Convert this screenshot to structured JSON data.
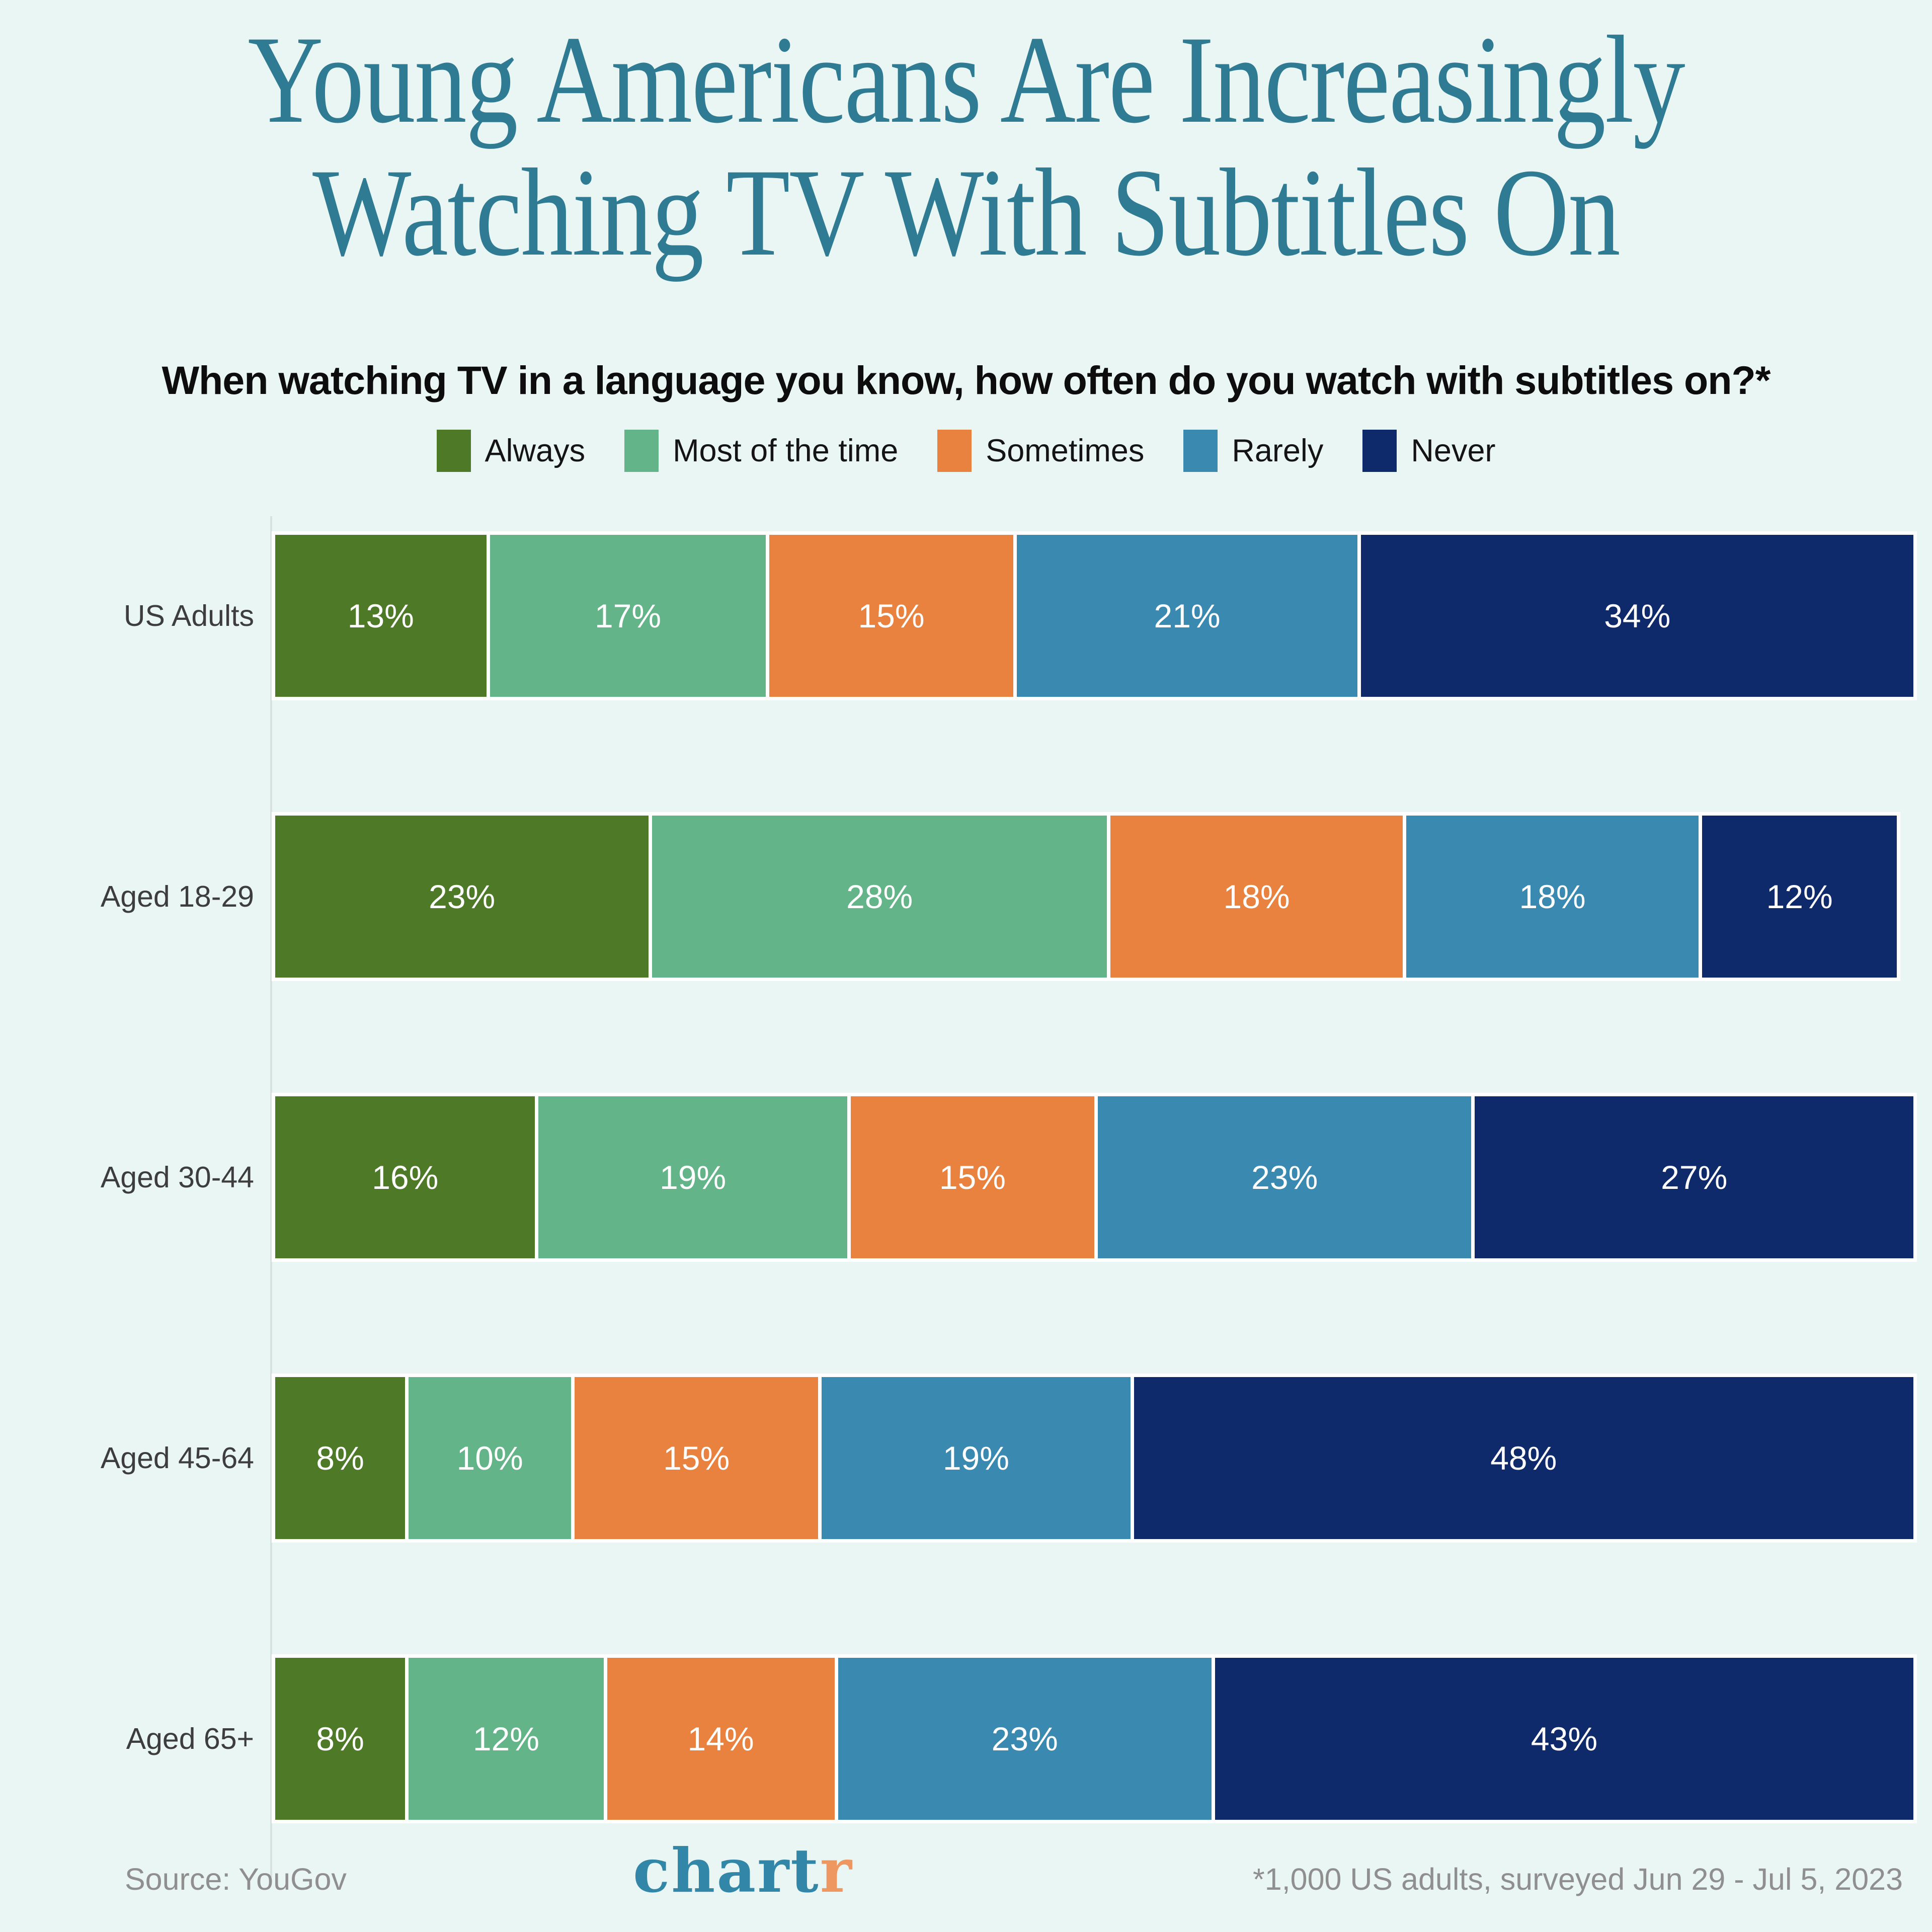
{
  "page": {
    "background": "#eaf6f3"
  },
  "header": {
    "title_lines": [
      "Young Americans Are Increasingly",
      "Watching TV With Subtitles On"
    ],
    "title_color": "#2f7b93",
    "subtitle": "When watching TV in a language you know, how often do you watch with subtitles on?*"
  },
  "legend": [
    {
      "label": "Always",
      "color": "#4e7a28"
    },
    {
      "label": "Most of the time",
      "color": "#63b488"
    },
    {
      "label": "Sometimes",
      "color": "#e8823e"
    },
    {
      "label": "Rarely",
      "color": "#3a89b1"
    },
    {
      "label": "Never",
      "color": "#0f2a6b"
    }
  ],
  "chart_data": {
    "type": "bar",
    "orientation": "horizontal",
    "stacked": true,
    "title": "Young Americans Are Increasingly Watching TV With Subtitles On",
    "subtitle": "When watching TV in a language you know, how often do you watch with subtitles on?*",
    "categories": [
      "US Adults",
      "Aged 18-29",
      "Aged 30-44",
      "Aged 45-64",
      "Aged 65+"
    ],
    "series": [
      {
        "name": "Always",
        "color": "#4e7a28",
        "values": [
          13,
          23,
          16,
          8,
          8
        ]
      },
      {
        "name": "Most of the time",
        "color": "#63b488",
        "values": [
          17,
          28,
          19,
          10,
          12
        ]
      },
      {
        "name": "Sometimes",
        "color": "#e8823e",
        "values": [
          15,
          18,
          15,
          15,
          14
        ]
      },
      {
        "name": "Rarely",
        "color": "#3a89b1",
        "values": [
          21,
          18,
          23,
          19,
          23
        ]
      },
      {
        "name": "Never",
        "color": "#0f2a6b",
        "values": [
          34,
          12,
          27,
          48,
          43
        ]
      }
    ],
    "value_suffix": "%",
    "xlim": [
      0,
      100
    ],
    "grid": false,
    "legend_position": "top"
  },
  "footer": {
    "source": "Source: YouGov",
    "logo_part1": "chart",
    "logo_part2": "r",
    "logo_color1": "#3287a8",
    "logo_color2": "#ef9760",
    "note": "*1,000 US adults, surveyed Jun 29 - Jul 5, 2023"
  }
}
